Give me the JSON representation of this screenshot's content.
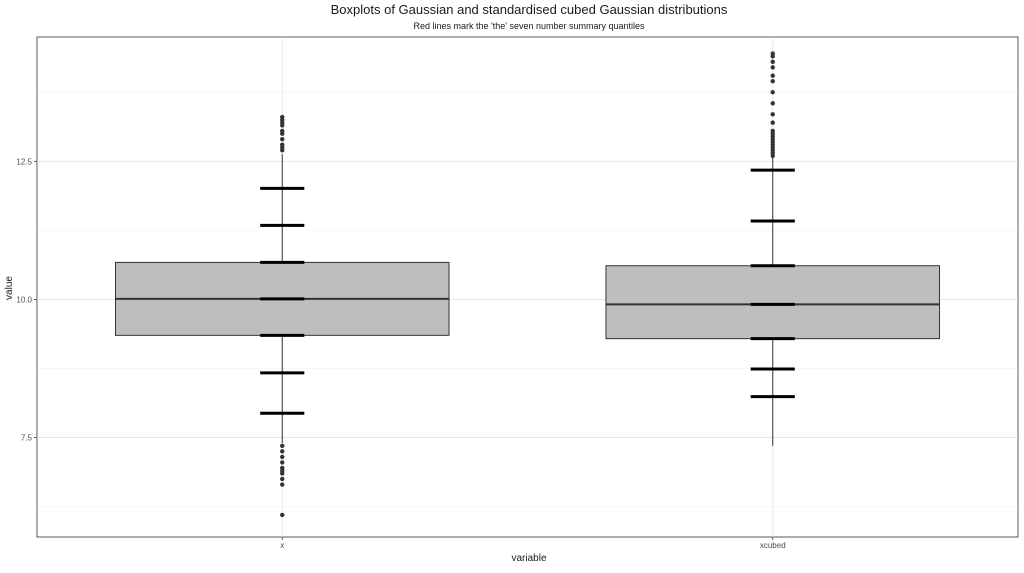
{
  "chart_data": {
    "type": "box",
    "title": "Boxplots of Gaussian and standardised cubed Gaussian distributions",
    "subtitle": "Red lines mark the 'the' seven number summary quantiles",
    "xlabel": "variable",
    "ylabel": "value",
    "ylim": [
      5.7,
      14.75
    ],
    "yticks": [
      7.5,
      10.0,
      12.5
    ],
    "ytick_labels": [
      "7.5",
      "10.0",
      "12.5"
    ],
    "grid": true,
    "box_fill": "#bebebe",
    "quantile_line_color": "#000000",
    "categories": [
      "x",
      "xcubed"
    ],
    "boxes": [
      {
        "category": "x",
        "whisker_low": 7.4,
        "q1": 9.35,
        "median": 10.01,
        "q3": 10.67,
        "whisker_high": 12.63,
        "outliers": [
          6.1,
          6.65,
          6.75,
          6.85,
          6.9,
          6.95,
          7.05,
          7.15,
          7.25,
          7.35,
          12.7,
          12.75,
          12.8,
          12.9,
          13.0,
          13.05,
          13.15,
          13.2,
          13.25,
          13.3
        ],
        "seven_number_summary": [
          7.94,
          8.67,
          9.35,
          10.01,
          10.67,
          11.34,
          12.01
        ]
      },
      {
        "category": "xcubed",
        "whisker_low": 7.35,
        "q1": 9.29,
        "median": 9.91,
        "q3": 10.61,
        "whisker_high": 12.57,
        "outliers": [
          12.6,
          12.65,
          12.7,
          12.75,
          12.8,
          12.85,
          12.9,
          12.95,
          13.0,
          13.05,
          13.2,
          13.35,
          13.55,
          13.75,
          13.95,
          14.05,
          14.2,
          14.3,
          14.4,
          14.45
        ],
        "seven_number_summary": [
          8.24,
          8.74,
          9.29,
          9.91,
          10.61,
          11.42,
          12.34
        ]
      }
    ]
  }
}
